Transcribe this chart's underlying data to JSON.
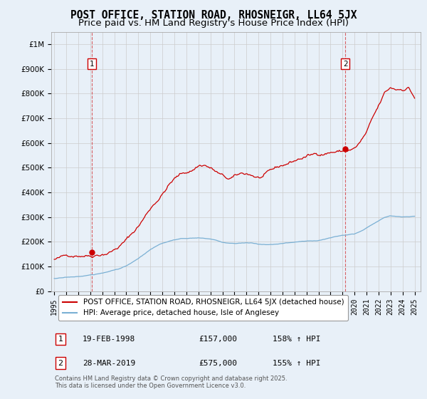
{
  "title": "POST OFFICE, STATION ROAD, RHOSNEIGR, LL64 5JX",
  "subtitle": "Price paid vs. HM Land Registry's House Price Index (HPI)",
  "background_color": "#e8f0f8",
  "plot_bg_color": "#e8f0f8",
  "ylim": [
    0,
    1050000
  ],
  "yticks": [
    0,
    100000,
    200000,
    300000,
    400000,
    500000,
    600000,
    700000,
    800000,
    900000,
    1000000
  ],
  "ytick_labels": [
    "£0",
    "£100K",
    "£200K",
    "£300K",
    "£400K",
    "£500K",
    "£600K",
    "£700K",
    "£800K",
    "£900K",
    "£1M"
  ],
  "xlim_start": 1994.75,
  "xlim_end": 2025.5,
  "red_line_color": "#cc0000",
  "blue_line_color": "#7ab0d4",
  "marker1_x": 1998.12,
  "marker1_y": 920000,
  "marker1_label": "1",
  "marker2_x": 2019.23,
  "marker2_y": 920000,
  "marker2_label": "2",
  "dot1_x": 1998.12,
  "dot1_y": 157000,
  "dot2_x": 2019.23,
  "dot2_y": 575000,
  "legend_line1": "POST OFFICE, STATION ROAD, RHOSNEIGR, LL64 5JX (detached house)",
  "legend_line2": "HPI: Average price, detached house, Isle of Anglesey",
  "footer": "Contains HM Land Registry data © Crown copyright and database right 2025.\nThis data is licensed under the Open Government Licence v3.0.",
  "grid_color": "#bbbbbb",
  "title_fontsize": 10.5,
  "subtitle_fontsize": 9.5
}
